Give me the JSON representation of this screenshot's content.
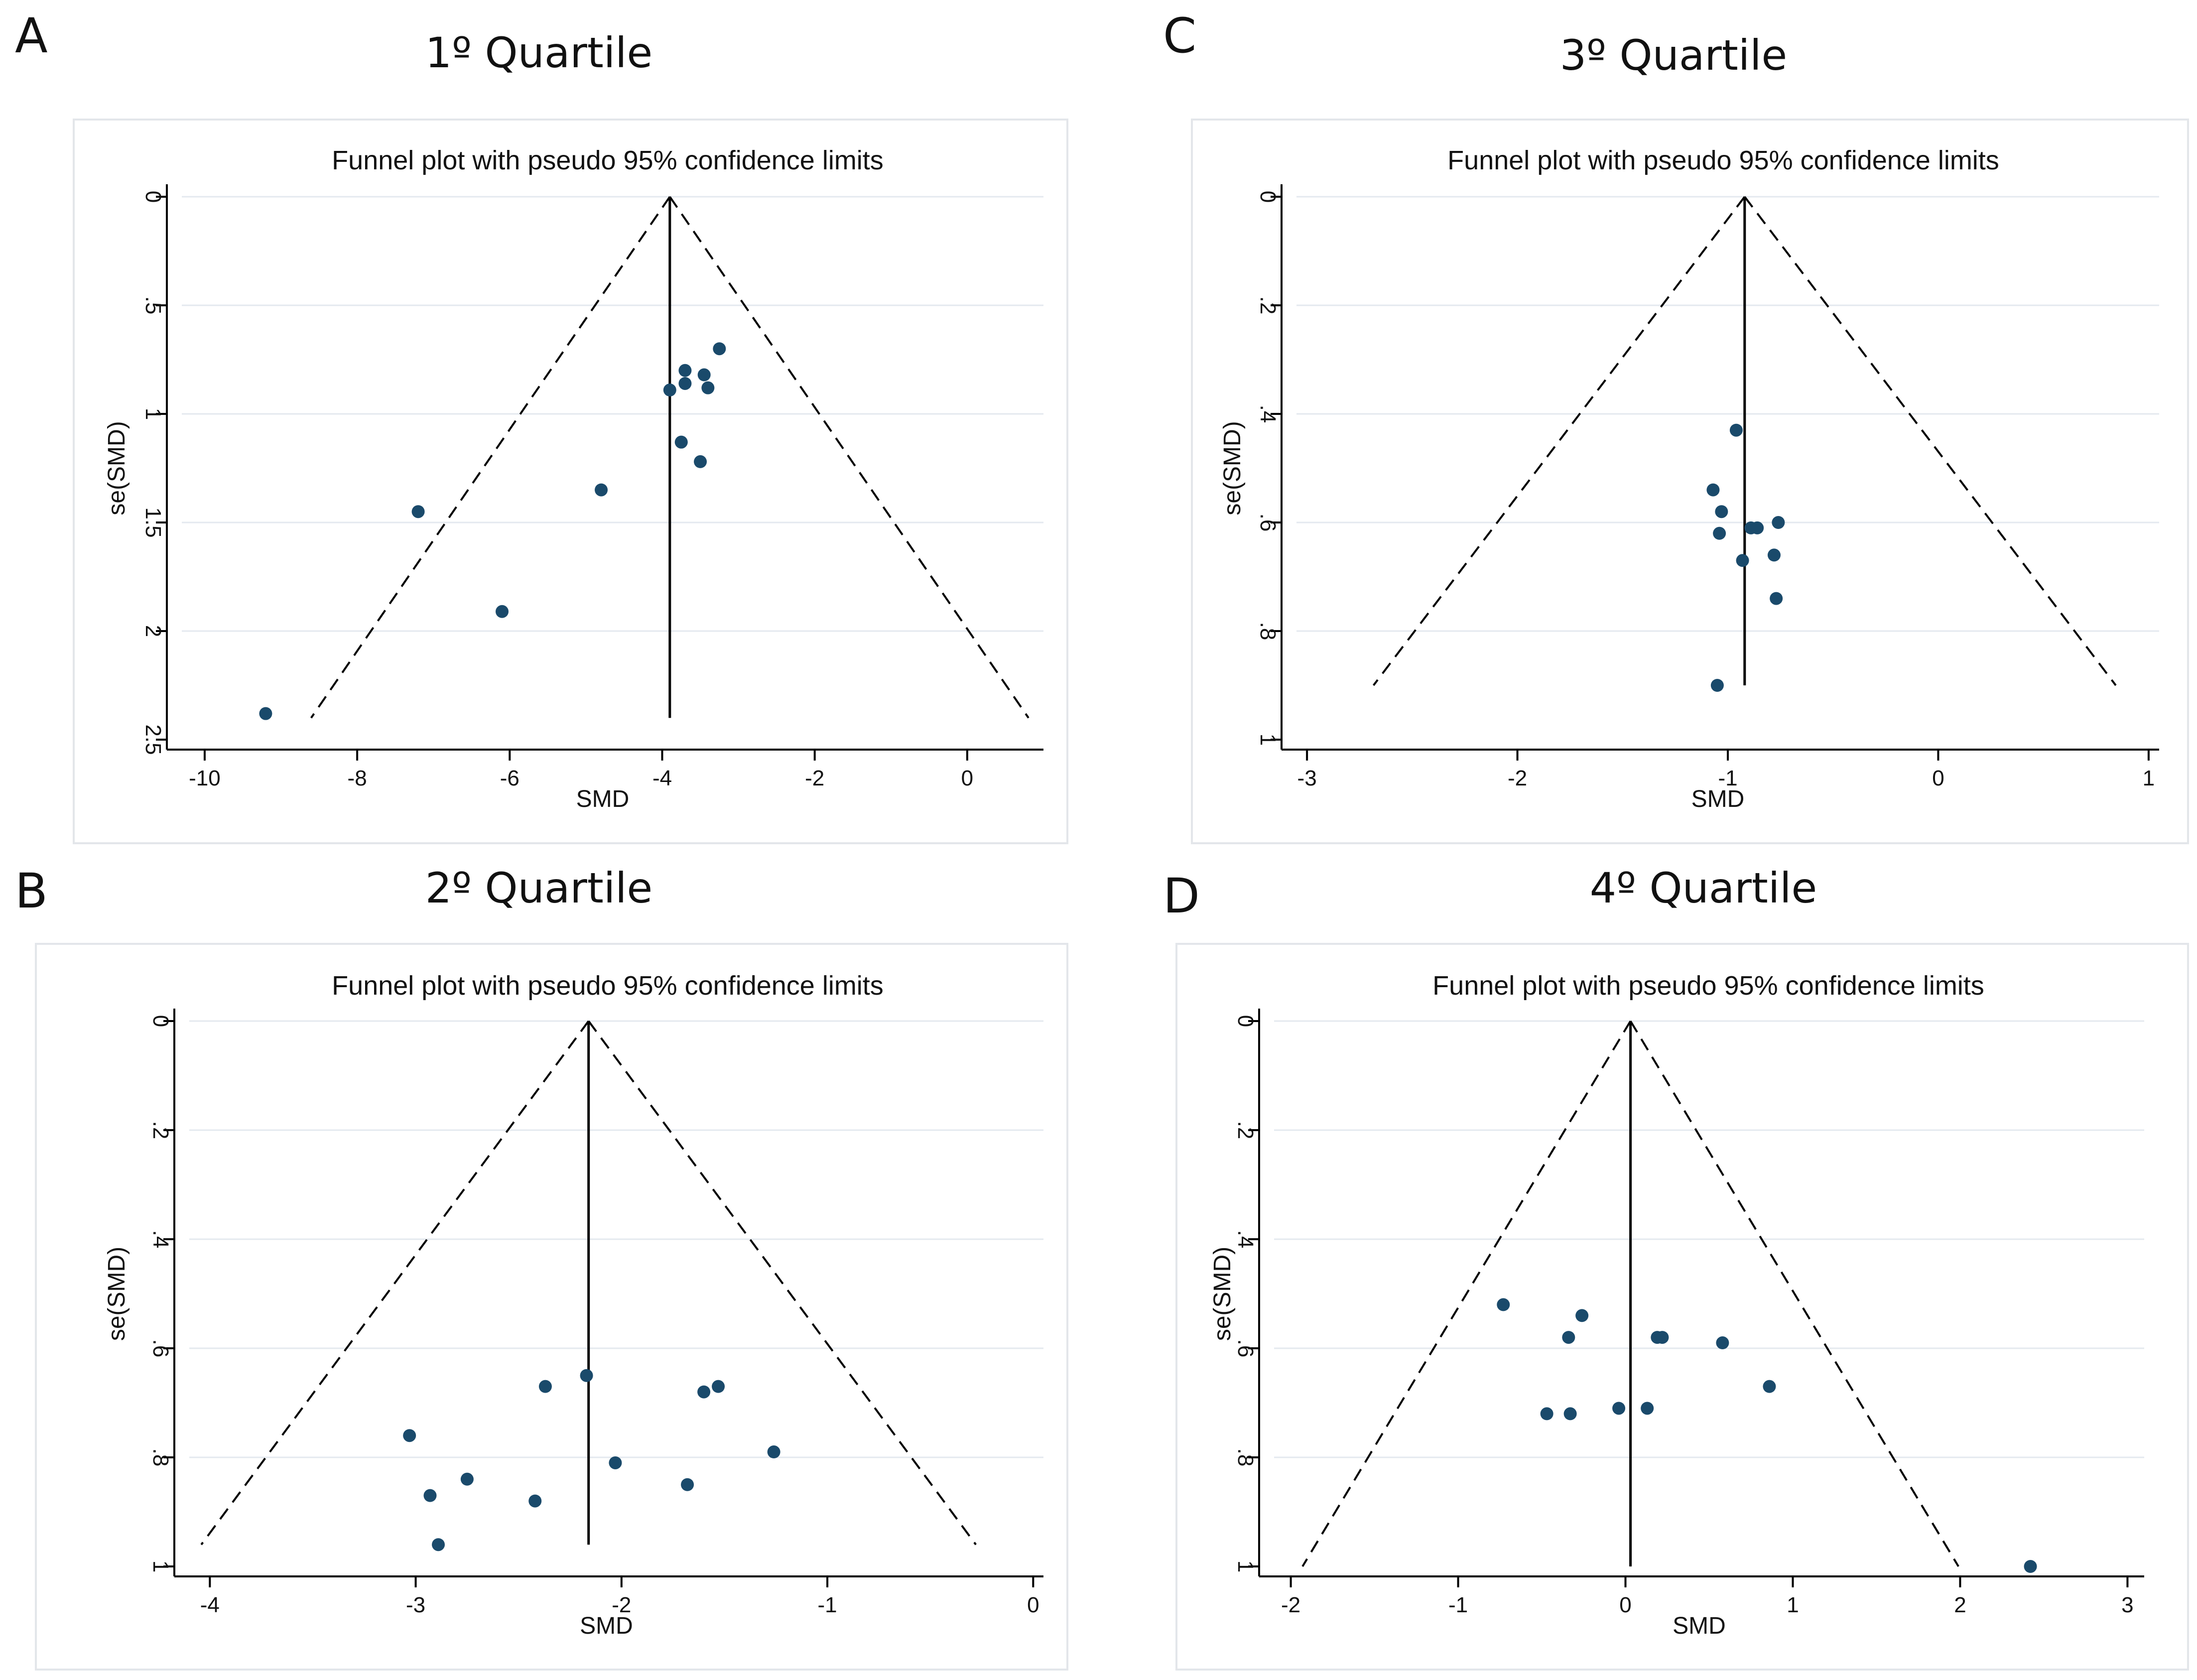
{
  "figure": {
    "panels": [
      {
        "letter": "A",
        "quartile_title": "1º Quartile"
      },
      {
        "letter": "C",
        "quartile_title": "3º Quartile"
      },
      {
        "letter": "B",
        "quartile_title": "2º Quartile"
      },
      {
        "letter": "D",
        "quartile_title": "4º Quartile"
      }
    ]
  },
  "chart_data": [
    {
      "type": "scatter",
      "title": "Funnel plot with pseudo 95% confidence limits",
      "xlabel": "SMD",
      "ylabel": "se(SMD)",
      "xlim": [
        -10.3,
        1.0
      ],
      "ylim": [
        0,
        2.5
      ],
      "y_inverted": true,
      "xticks": [
        -10,
        -8,
        -6,
        -4,
        -2,
        0
      ],
      "yticks": [
        0,
        0.5,
        1,
        1.5,
        2,
        2.5
      ],
      "yticklabels": [
        "0",
        ".5",
        "1",
        "1.5",
        "2",
        "2.5"
      ],
      "grid": true,
      "pooled_smd": -3.9,
      "funnel_se_max": 2.4,
      "points": [
        {
          "x": -3.25,
          "y": 0.7
        },
        {
          "x": -3.7,
          "y": 0.8
        },
        {
          "x": -3.45,
          "y": 0.82
        },
        {
          "x": -3.7,
          "y": 0.86
        },
        {
          "x": -3.4,
          "y": 0.88
        },
        {
          "x": -3.9,
          "y": 0.89
        },
        {
          "x": -3.75,
          "y": 1.13
        },
        {
          "x": -3.5,
          "y": 1.22
        },
        {
          "x": -4.8,
          "y": 1.35
        },
        {
          "x": -7.2,
          "y": 1.45
        },
        {
          "x": -6.1,
          "y": 1.91
        },
        {
          "x": -9.2,
          "y": 2.38
        }
      ]
    },
    {
      "type": "scatter",
      "title": "Funnel plot with pseudo 95% confidence limits",
      "xlabel": "SMD",
      "ylabel": "se(SMD)",
      "xlim": [
        -3.05,
        1.05
      ],
      "ylim": [
        0,
        1
      ],
      "y_inverted": true,
      "xticks": [
        -3,
        -2,
        -1,
        0,
        1
      ],
      "yticks": [
        0,
        0.2,
        0.4,
        0.6,
        0.8,
        1
      ],
      "yticklabels": [
        "0",
        ".2",
        ".4",
        ".6",
        ".8",
        "1"
      ],
      "grid": true,
      "pooled_smd": -0.92,
      "funnel_se_max": 0.9,
      "points": [
        {
          "x": -0.96,
          "y": 0.43
        },
        {
          "x": -1.07,
          "y": 0.54
        },
        {
          "x": -1.03,
          "y": 0.58
        },
        {
          "x": -0.76,
          "y": 0.6
        },
        {
          "x": -0.86,
          "y": 0.61
        },
        {
          "x": -0.89,
          "y": 0.61
        },
        {
          "x": -1.04,
          "y": 0.62
        },
        {
          "x": -0.78,
          "y": 0.66
        },
        {
          "x": -0.93,
          "y": 0.67
        },
        {
          "x": -0.77,
          "y": 0.74
        },
        {
          "x": -1.05,
          "y": 0.9
        }
      ]
    },
    {
      "type": "scatter",
      "title": "Funnel plot with pseudo 95% confidence limits",
      "xlabel": "SMD",
      "ylabel": "se(SMD)",
      "xlim": [
        -4.1,
        0.05
      ],
      "ylim": [
        0,
        1
      ],
      "y_inverted": true,
      "xticks": [
        -4,
        -3,
        -2,
        -1,
        0
      ],
      "yticks": [
        0,
        0.2,
        0.4,
        0.6,
        0.8,
        1
      ],
      "yticklabels": [
        "0",
        ".2",
        ".4",
        ".6",
        ".8",
        "1"
      ],
      "grid": true,
      "pooled_smd": -2.16,
      "funnel_se_max": 0.96,
      "points": [
        {
          "x": -2.17,
          "y": 0.65
        },
        {
          "x": -1.53,
          "y": 0.67
        },
        {
          "x": -1.6,
          "y": 0.68
        },
        {
          "x": -2.37,
          "y": 0.67
        },
        {
          "x": -3.03,
          "y": 0.76
        },
        {
          "x": -1.26,
          "y": 0.79
        },
        {
          "x": -2.03,
          "y": 0.81
        },
        {
          "x": -2.75,
          "y": 0.84
        },
        {
          "x": -1.68,
          "y": 0.85
        },
        {
          "x": -2.93,
          "y": 0.87
        },
        {
          "x": -2.42,
          "y": 0.88
        },
        {
          "x": -2.89,
          "y": 0.96
        }
      ]
    },
    {
      "type": "scatter",
      "title": "Funnel plot with pseudo 95% confidence limits",
      "xlabel": "SMD",
      "ylabel": "se(SMD)",
      "xlim": [
        -2.1,
        3.1
      ],
      "ylim": [
        0,
        1
      ],
      "y_inverted": true,
      "xticks": [
        -2,
        -1,
        0,
        1,
        2,
        3
      ],
      "yticks": [
        0,
        0.2,
        0.4,
        0.6,
        0.8,
        1
      ],
      "yticklabels": [
        "0",
        ".2",
        ".4",
        ".6",
        ".8",
        "1"
      ],
      "grid": true,
      "pooled_smd": 0.03,
      "funnel_se_max": 1.0,
      "points": [
        {
          "x": -0.73,
          "y": 0.52
        },
        {
          "x": -0.26,
          "y": 0.54
        },
        {
          "x": -0.34,
          "y": 0.58
        },
        {
          "x": 0.19,
          "y": 0.58
        },
        {
          "x": 0.22,
          "y": 0.58
        },
        {
          "x": 0.58,
          "y": 0.59
        },
        {
          "x": 0.86,
          "y": 0.67
        },
        {
          "x": -0.04,
          "y": 0.71
        },
        {
          "x": 0.13,
          "y": 0.71
        },
        {
          "x": -0.33,
          "y": 0.72
        },
        {
          "x": -0.47,
          "y": 0.72
        },
        {
          "x": 2.42,
          "y": 1.0
        }
      ]
    }
  ]
}
